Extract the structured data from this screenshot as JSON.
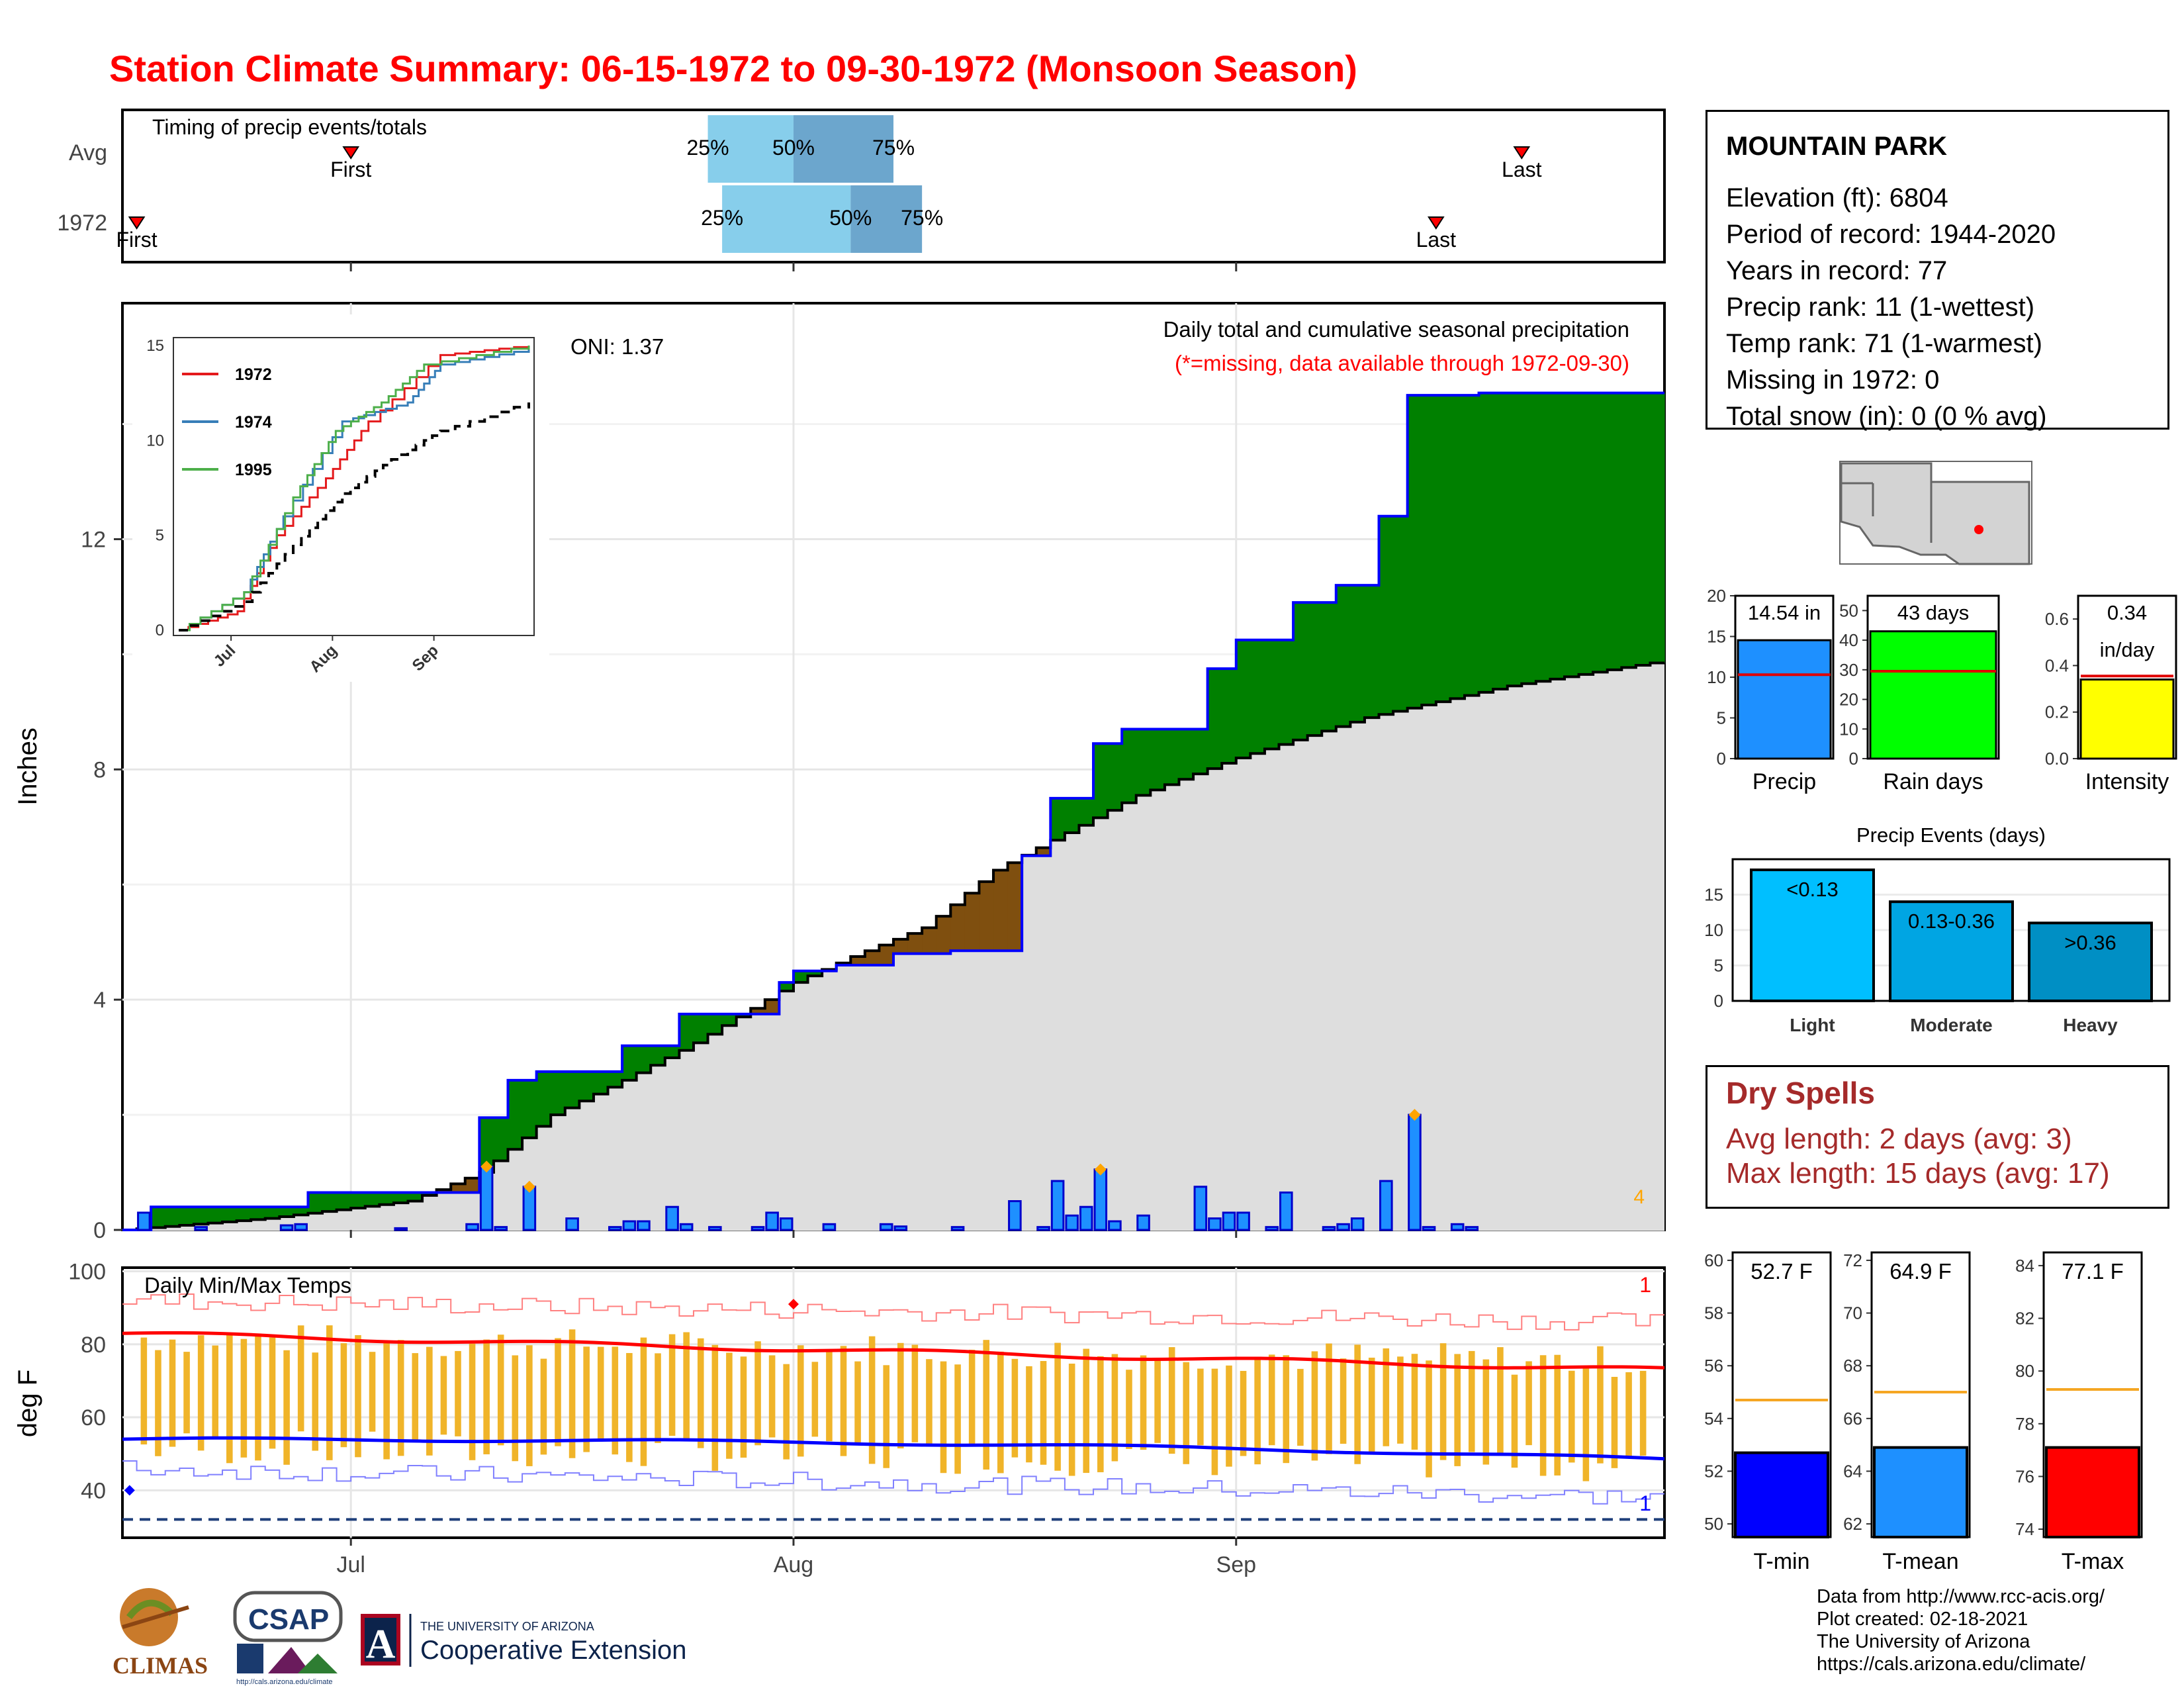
{
  "title": "Station Climate Summary: 06-15-1972 to 09-30-1972 (Monsoon Season)",
  "timing_panel": {
    "label": "Timing of precip events/totals",
    "rows": [
      {
        "name": "Avg",
        "first_label": "First",
        "last_label": "Last",
        "p25": "25%",
        "p50": "50%",
        "p75": "75%",
        "first_date": "1972-07-01",
        "q25_date": "1972-07-26",
        "q50_date": "1972-08-01",
        "q75_date": "1972-08-08",
        "last_date": "1972-09-21"
      },
      {
        "name": "1972",
        "first_label": "First",
        "last_label": "Last",
        "p25": "25%",
        "p50": "50%",
        "p75": "75%",
        "first_date": "1972-06-16",
        "q25_date": "1972-07-27",
        "q50_date": "1972-08-05",
        "q75_date": "1972-08-10",
        "last_date": "1972-09-15"
      }
    ],
    "colors": {
      "light": "#87ceeb",
      "dark": "#6ca6cd",
      "marker": "#ff0000"
    }
  },
  "main_panel": {
    "ylabel": "Inches",
    "oni": "ONI: 1.37",
    "caption": "Daily total and cumulative seasonal precipitation",
    "missing_note": "(*=missing, data available through 1972-09-30)",
    "corner_count": "4",
    "y_ticks": [
      "0",
      "4",
      "8",
      "12"
    ],
    "x_ticks": [
      "Jul",
      "Aug",
      "Sep"
    ]
  },
  "inset": {
    "y_ticks": [
      "0",
      "5",
      "10",
      "15"
    ],
    "x_ticks": [
      "Jul",
      "Aug",
      "Sep"
    ],
    "legend": [
      {
        "name": "1972",
        "color": "#e41a1c"
      },
      {
        "name": "1974",
        "color": "#377eb8"
      },
      {
        "name": "1995",
        "color": "#4daf4a"
      }
    ]
  },
  "temp_panel": {
    "label": "Daily Min/Max Temps",
    "ylabel": "deg F",
    "y_ticks": [
      "40",
      "60",
      "80",
      "100"
    ],
    "x_ticks": [
      "Jul",
      "Aug",
      "Sep"
    ],
    "count_max": "1",
    "count_min": "1"
  },
  "station": {
    "name": "MOUNTAIN PARK",
    "lines": [
      "Elevation (ft): 6804",
      "Period of record: 1944-2020",
      "Years in record: 77",
      "Precip rank: 11 (1-wettest)",
      "Temp rank: 71 (1-warmest)",
      "Missing in 1972: 0",
      "Total snow (in): 0 (0 % avg)"
    ]
  },
  "summary_bars": [
    {
      "name": "Precip",
      "label": "14.54 in",
      "value": 14.54,
      "avg": 10.3,
      "ymax": 20,
      "ticks": [
        "0",
        "5",
        "10",
        "15",
        "20"
      ],
      "color": "#1e90ff"
    },
    {
      "name": "Rain days",
      "label": "43 days",
      "value": 43,
      "avg": 29.5,
      "ymax": 55,
      "ticks": [
        "0",
        "10",
        "20",
        "30",
        "40",
        "50"
      ],
      "color": "#00ff00"
    },
    {
      "name": "Intensity",
      "label": "0.34",
      "label2": "in/day",
      "value": 0.34,
      "avg": 0.355,
      "ymax": 0.7,
      "ticks": [
        "0.0",
        "0.2",
        "0.4",
        "0.6"
      ],
      "color": "#ffff00"
    }
  ],
  "precip_events": {
    "title": "Precip Events (days)",
    "ticks": [
      "0",
      "5",
      "10",
      "15"
    ],
    "bars": [
      {
        "name": "Light",
        "label": "<0.13",
        "value": 18.5,
        "color": "#00bfff"
      },
      {
        "name": "Moderate",
        "label": "0.13-0.36",
        "value": 14,
        "color": "#00a5e3"
      },
      {
        "name": "Heavy",
        "label": ">0.36",
        "value": 11,
        "color": "#008fc4"
      }
    ]
  },
  "dry_spells": {
    "title": "Dry Spells",
    "avg_length": "Avg length: 2 days (avg: 3)",
    "max_length": "Max length: 15 days (avg: 17)"
  },
  "temp_bars": [
    {
      "name": "T-min",
      "label": "52.7 F",
      "value": 52.7,
      "avg": 54.7,
      "ymin": 49.5,
      "ymax": 60.3,
      "ticks": [
        "50",
        "52",
        "54",
        "56",
        "58",
        "60"
      ],
      "color": "#0000ff"
    },
    {
      "name": "T-mean",
      "label": "64.9 F",
      "value": 64.9,
      "avg": 67.0,
      "ymin": 61.5,
      "ymax": 72.3,
      "ticks": [
        "62",
        "64",
        "66",
        "68",
        "70",
        "72"
      ],
      "color": "#1e90ff"
    },
    {
      "name": "T-max",
      "label": "77.1 F",
      "value": 77.1,
      "avg": 79.3,
      "ymin": 73.7,
      "ymax": 84.5,
      "ticks": [
        "74",
        "76",
        "78",
        "80",
        "82",
        "84"
      ],
      "color": "#ff0000"
    }
  ],
  "credits": [
    "Data from http://www.rcc-acis.org/",
    "Plot created: 02-18-2021",
    "The University of Arizona",
    "https://cals.arizona.edu/climate/"
  ],
  "logos": {
    "climas": "CLIMAS",
    "csap": "CSAP",
    "csap_url": "http://cals.arizona.edu/climate",
    "ua_line1": "THE UNIVERSITY OF ARIZONA",
    "ua_line2": "Cooperative Extension",
    "ua_mark": "A"
  },
  "chart_data": {
    "type": "step-area",
    "season_start": "1972-06-15",
    "season_end": "1972-09-30",
    "daily_precip_in": [
      {
        "date": "1972-06-16",
        "value": 0.3
      },
      {
        "date": "1972-06-20",
        "value": 0.05
      },
      {
        "date": "1972-06-26",
        "value": 0.08
      },
      {
        "date": "1972-06-27",
        "value": 0.1
      },
      {
        "date": "1972-07-04",
        "value": 0.03
      },
      {
        "date": "1972-07-09",
        "value": 0.1
      },
      {
        "date": "1972-07-10",
        "value": 1.1
      },
      {
        "date": "1972-07-11",
        "value": 0.05
      },
      {
        "date": "1972-07-13",
        "value": 0.75
      },
      {
        "date": "1972-07-16",
        "value": 0.2
      },
      {
        "date": "1972-07-19",
        "value": 0.05
      },
      {
        "date": "1972-07-20",
        "value": 0.15
      },
      {
        "date": "1972-07-21",
        "value": 0.15
      },
      {
        "date": "1972-07-23",
        "value": 0.4
      },
      {
        "date": "1972-07-24",
        "value": 0.1
      },
      {
        "date": "1972-07-26",
        "value": 0.05
      },
      {
        "date": "1972-07-29",
        "value": 0.05
      },
      {
        "date": "1972-07-30",
        "value": 0.3
      },
      {
        "date": "1972-07-31",
        "value": 0.2
      },
      {
        "date": "1972-08-03",
        "value": 0.1
      },
      {
        "date": "1972-08-07",
        "value": 0.1
      },
      {
        "date": "1972-08-08",
        "value": 0.06
      },
      {
        "date": "1972-08-12",
        "value": 0.05
      },
      {
        "date": "1972-08-16",
        "value": 0.5
      },
      {
        "date": "1972-08-18",
        "value": 0.05
      },
      {
        "date": "1972-08-19",
        "value": 0.85
      },
      {
        "date": "1972-08-20",
        "value": 0.25
      },
      {
        "date": "1972-08-21",
        "value": 0.4
      },
      {
        "date": "1972-08-22",
        "value": 1.05
      },
      {
        "date": "1972-08-23",
        "value": 0.15
      },
      {
        "date": "1972-08-25",
        "value": 0.25
      },
      {
        "date": "1972-08-29",
        "value": 0.75
      },
      {
        "date": "1972-08-30",
        "value": 0.2
      },
      {
        "date": "1972-08-31",
        "value": 0.3
      },
      {
        "date": "1972-09-01",
        "value": 0.3
      },
      {
        "date": "1972-09-03",
        "value": 0.05
      },
      {
        "date": "1972-09-04",
        "value": 0.65
      },
      {
        "date": "1972-09-07",
        "value": 0.05
      },
      {
        "date": "1972-09-08",
        "value": 0.1
      },
      {
        "date": "1972-09-09",
        "value": 0.2
      },
      {
        "date": "1972-09-11",
        "value": 0.85
      },
      {
        "date": "1972-09-13",
        "value": 2.0
      },
      {
        "date": "1972-09-14",
        "value": 0.05
      },
      {
        "date": "1972-09-16",
        "value": 0.1
      },
      {
        "date": "1972-09-17",
        "value": 0.05
      }
    ],
    "cumulative_1972_in": [
      {
        "date": "1972-06-15",
        "value": 0
      },
      {
        "date": "1972-06-17",
        "value": 0.4
      },
      {
        "date": "1972-06-28",
        "value": 0.65
      },
      {
        "date": "1972-07-10",
        "value": 1.95
      },
      {
        "date": "1972-07-12",
        "value": 2.6
      },
      {
        "date": "1972-07-14",
        "value": 2.75
      },
      {
        "date": "1972-07-20",
        "value": 3.2
      },
      {
        "date": "1972-07-24",
        "value": 3.75
      },
      {
        "date": "1972-07-31",
        "value": 4.3
      },
      {
        "date": "1972-08-01",
        "value": 4.5
      },
      {
        "date": "1972-08-04",
        "value": 4.6
      },
      {
        "date": "1972-08-08",
        "value": 4.8
      },
      {
        "date": "1972-08-12",
        "value": 4.85
      },
      {
        "date": "1972-08-17",
        "value": 6.5
      },
      {
        "date": "1972-08-19",
        "value": 7.5
      },
      {
        "date": "1972-08-22",
        "value": 8.45
      },
      {
        "date": "1972-08-24",
        "value": 8.7
      },
      {
        "date": "1972-08-30",
        "value": 9.75
      },
      {
        "date": "1972-09-01",
        "value": 10.25
      },
      {
        "date": "1972-09-05",
        "value": 10.9
      },
      {
        "date": "1972-09-08",
        "value": 11.2
      },
      {
        "date": "1972-09-11",
        "value": 12.4
      },
      {
        "date": "1972-09-13",
        "value": 14.5
      },
      {
        "date": "1972-09-18",
        "value": 14.54
      },
      {
        "date": "1972-09-30",
        "value": 14.54
      }
    ],
    "cumulative_avg_in": [
      {
        "date": "1972-06-15",
        "value": 0.0
      },
      {
        "date": "1972-06-25",
        "value": 0.2
      },
      {
        "date": "1972-07-05",
        "value": 0.5
      },
      {
        "date": "1972-07-10",
        "value": 1.0
      },
      {
        "date": "1972-07-15",
        "value": 2.0
      },
      {
        "date": "1972-07-20",
        "value": 2.6
      },
      {
        "date": "1972-07-25",
        "value": 3.25
      },
      {
        "date": "1972-08-01",
        "value": 4.3
      },
      {
        "date": "1972-08-05",
        "value": 4.75
      },
      {
        "date": "1972-08-10",
        "value": 5.25
      },
      {
        "date": "1972-08-15",
        "value": 6.25
      },
      {
        "date": "1972-08-20",
        "value": 6.9
      },
      {
        "date": "1972-08-25",
        "value": 7.55
      },
      {
        "date": "1972-09-01",
        "value": 8.2
      },
      {
        "date": "1972-09-10",
        "value": 8.9
      },
      {
        "date": "1972-09-20",
        "value": 9.45
      },
      {
        "date": "1972-09-30",
        "value": 9.85
      }
    ],
    "highlighted_days": [
      "1972-07-10",
      "1972-07-13",
      "1972-08-22",
      "1972-09-13"
    ],
    "inset_series": [
      {
        "name": "1972",
        "points": [
          [
            0,
            0
          ],
          [
            18,
            1
          ],
          [
            30,
            5
          ],
          [
            45,
            8
          ],
          [
            58,
            11
          ],
          [
            80,
            14.5
          ],
          [
            107,
            15
          ]
        ]
      },
      {
        "name": "1974",
        "points": [
          [
            0,
            0
          ],
          [
            20,
            2
          ],
          [
            32,
            6
          ],
          [
            50,
            11
          ],
          [
            70,
            12
          ],
          [
            80,
            14
          ],
          [
            107,
            14.8
          ]
        ]
      },
      {
        "name": "1995",
        "points": [
          [
            0,
            0
          ],
          [
            20,
            2
          ],
          [
            35,
            7
          ],
          [
            48,
            10.5
          ],
          [
            62,
            12
          ],
          [
            75,
            14
          ],
          [
            107,
            15
          ]
        ]
      },
      {
        "name": "avg",
        "points": [
          [
            0,
            0
          ],
          [
            20,
            1.5
          ],
          [
            35,
            4.5
          ],
          [
            50,
            7.2
          ],
          [
            65,
            9
          ],
          [
            80,
            10.5
          ],
          [
            107,
            12
          ]
        ]
      }
    ],
    "temps_avg_max_start": 83,
    "temps_avg_max_end": 73,
    "temps_avg_min_start": 54,
    "temps_avg_min_end": 47,
    "temps_record_low_line": 32,
    "temps_y_range": [
      27,
      101
    ],
    "precip_y_range": [
      0,
      16
    ]
  }
}
